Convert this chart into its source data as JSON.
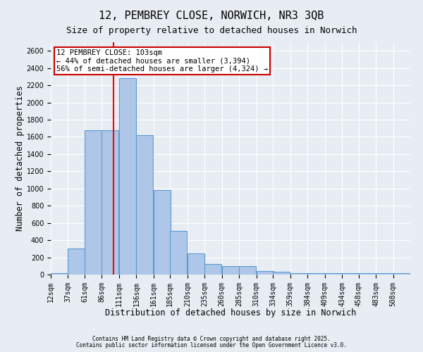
{
  "title1": "12, PEMBREY CLOSE, NORWICH, NR3 3QB",
  "title2": "Size of property relative to detached houses in Norwich",
  "xlabel": "Distribution of detached houses by size in Norwich",
  "ylabel": "Number of detached properties",
  "bins": [
    12,
    37,
    61,
    86,
    111,
    136,
    161,
    185,
    210,
    235,
    260,
    285,
    310,
    334,
    359,
    384,
    409,
    434,
    458,
    483,
    508
  ],
  "values": [
    20,
    300,
    1680,
    1680,
    2280,
    1620,
    980,
    510,
    245,
    125,
    100,
    100,
    40,
    35,
    20,
    20,
    20,
    20,
    15,
    15,
    15
  ],
  "bar_color": "#aec6e8",
  "bar_edge_color": "#5b9bd5",
  "bar_edge_width": 0.8,
  "red_line_x": 103,
  "red_line_color": "#ff0000",
  "annotation_text": "12 PEMBREY CLOSE: 103sqm\n← 44% of detached houses are smaller (3,394)\n56% of semi-detached houses are larger (4,324) →",
  "annotation_box_color": "#ffffff",
  "annotation_box_edge": "#cc0000",
  "ylim": [
    0,
    2700
  ],
  "background_color": "#e8edf4",
  "grid_color": "#ffffff",
  "footnote1": "Contains HM Land Registry data © Crown copyright and database right 2025.",
  "footnote2": "Contains public sector information licensed under the Open Government Licence v3.0.",
  "title_fontsize": 11,
  "subtitle_fontsize": 9,
  "xlabel_fontsize": 8.5,
  "ylabel_fontsize": 8.5,
  "tick_fontsize": 7,
  "annotation_fontsize": 7.5,
  "footnote_fontsize": 5.5
}
